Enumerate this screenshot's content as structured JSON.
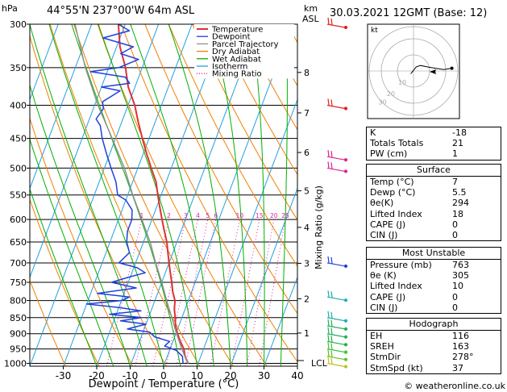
{
  "header": {
    "hpa_label": "hPa",
    "location": "44°55'N  237°00'W  64m  ASL",
    "km_label": "km",
    "asl_label": "ASL",
    "datetime": "30.03.2021  12GMT  (Base: 12)"
  },
  "chart_data": {
    "type": "line",
    "title": "",
    "xlabel": "Dewpoint / Temperature (°C)",
    "ylabel": "Mixing Ratio (g/kg)",
    "x_ticks": [
      -30,
      -20,
      -10,
      0,
      10,
      20,
      30,
      40
    ],
    "pressure_ticks": [
      300,
      350,
      400,
      450,
      500,
      550,
      600,
      650,
      700,
      750,
      800,
      850,
      900,
      950,
      1000
    ],
    "pressure_range": [
      300,
      1010
    ],
    "x_range_at_surface": [
      -40,
      40
    ],
    "skew_deg_per_log_decade": 73,
    "km_ticks": [
      {
        "label": "8",
        "p": 356
      },
      {
        "label": "7",
        "p": 411
      },
      {
        "label": "6",
        "p": 473
      },
      {
        "label": "5",
        "p": 542
      },
      {
        "label": "4",
        "p": 617
      },
      {
        "label": "3",
        "p": 701
      },
      {
        "label": "2",
        "p": 795
      },
      {
        "label": "1",
        "p": 898
      }
    ],
    "lcl": {
      "label": "LCL",
      "p": 990
    },
    "mixing_ratio_labels": [
      "1",
      "2",
      "3",
      "4",
      "5",
      "6",
      "10",
      "15",
      "20",
      "25"
    ],
    "mixing_ratio_values": [
      1,
      2,
      3,
      4,
      5,
      6,
      10,
      15,
      20,
      25
    ],
    "grid": true,
    "legend": {
      "position": "top-right",
      "entries": [
        {
          "name": "Temperature",
          "color": "#e03030"
        },
        {
          "name": "Dewpoint",
          "color": "#2040e0"
        },
        {
          "name": "Parcel Trajectory",
          "color": "#909090"
        },
        {
          "name": "Dry Adiabat",
          "color": "#f08000"
        },
        {
          "name": "Wet Adiabat",
          "color": "#00b000"
        },
        {
          "name": "Isotherm",
          "color": "#20a0e0"
        },
        {
          "name": "Mixing Ratio",
          "color": "#e020a0"
        }
      ]
    },
    "series": [
      {
        "name": "Temperature",
        "color": "#e03030",
        "points": [
          [
            1000,
            7
          ],
          [
            975,
            5.3
          ],
          [
            950,
            4.1
          ],
          [
            925,
            2.2
          ],
          [
            900,
            0.5
          ],
          [
            875,
            -1
          ],
          [
            850,
            -2
          ],
          [
            825,
            -3.2
          ],
          [
            800,
            -4
          ],
          [
            775,
            -5.7
          ],
          [
            750,
            -7
          ],
          [
            725,
            -8.5
          ],
          [
            700,
            -10
          ],
          [
            675,
            -11.5
          ],
          [
            650,
            -13
          ],
          [
            625,
            -15
          ],
          [
            600,
            -17
          ],
          [
            575,
            -19
          ],
          [
            550,
            -21
          ],
          [
            525,
            -23
          ],
          [
            500,
            -26
          ],
          [
            475,
            -29
          ],
          [
            450,
            -32
          ],
          [
            425,
            -35
          ],
          [
            400,
            -38
          ],
          [
            375,
            -42
          ],
          [
            350,
            -45
          ],
          [
            325,
            -49
          ],
          [
            300,
            -52
          ]
        ]
      },
      {
        "name": "Dewpoint",
        "color": "#2040e0",
        "points": [
          [
            1000,
            5.5
          ],
          [
            975,
            4.5
          ],
          [
            955,
            2
          ],
          [
            940,
            -2
          ],
          [
            925,
            -1
          ],
          [
            910,
            -6
          ],
          [
            895,
            -8
          ],
          [
            885,
            -15
          ],
          [
            870,
            -10
          ],
          [
            860,
            -18
          ],
          [
            850,
            -12
          ],
          [
            840,
            -22
          ],
          [
            830,
            -13
          ],
          [
            820,
            -20
          ],
          [
            810,
            -30
          ],
          [
            800,
            -20
          ],
          [
            790,
            -18
          ],
          [
            780,
            -28
          ],
          [
            765,
            -17
          ],
          [
            750,
            -25
          ],
          [
            735,
            -20
          ],
          [
            725,
            -16
          ],
          [
            712,
            -19
          ],
          [
            700,
            -25
          ],
          [
            675,
            -23
          ],
          [
            650,
            -25
          ],
          [
            625,
            -26
          ],
          [
            600,
            -26
          ],
          [
            580,
            -27
          ],
          [
            560,
            -30
          ],
          [
            550,
            -33
          ],
          [
            525,
            -35
          ],
          [
            500,
            -38
          ],
          [
            475,
            -41
          ],
          [
            450,
            -44
          ],
          [
            430,
            -46
          ],
          [
            420,
            -48
          ],
          [
            405,
            -47
          ],
          [
            395,
            -48
          ],
          [
            380,
            -44
          ],
          [
            375,
            -50
          ],
          [
            370,
            -42
          ],
          [
            362,
            -44
          ],
          [
            355,
            -55
          ],
          [
            350,
            -47
          ],
          [
            340,
            -42
          ],
          [
            333,
            -48
          ],
          [
            325,
            -45
          ],
          [
            315,
            -55
          ],
          [
            307,
            -48
          ],
          [
            300,
            -52
          ]
        ]
      },
      {
        "name": "Parcel Trajectory",
        "color": "#909090",
        "points": [
          [
            1000,
            7
          ],
          [
            990,
            6.2
          ],
          [
            950,
            3.5
          ],
          [
            900,
            0.2
          ],
          [
            850,
            -3
          ],
          [
            800,
            -6.5
          ],
          [
            750,
            -10
          ],
          [
            700,
            -14
          ],
          [
            650,
            -18
          ],
          [
            600,
            -23
          ],
          [
            550,
            -28.5
          ],
          [
            500,
            -34
          ],
          [
            450,
            -41
          ],
          [
            400,
            -49
          ],
          [
            350,
            -57
          ],
          [
            300,
            -65
          ]
        ]
      }
    ]
  },
  "hodograph": {
    "label": "kt",
    "ring_labels": [
      "10",
      "20",
      "30"
    ],
    "trace_uv_kt": [
      [
        -2,
        -2
      ],
      [
        2,
        3
      ],
      [
        5,
        4
      ],
      [
        10,
        3
      ],
      [
        16,
        2
      ],
      [
        22,
        1
      ],
      [
        28,
        2
      ]
    ]
  },
  "wind_barbs": {
    "color_map_note": "",
    "levels": [
      {
        "p": 300,
        "color": "#e02020"
      },
      {
        "p": 400,
        "color": "#e02020"
      },
      {
        "p": 480,
        "color": "#e0208a"
      },
      {
        "p": 500,
        "color": "#e0208a"
      },
      {
        "p": 700,
        "color": "#2040e0"
      },
      {
        "p": 790,
        "color": "#20b0b0"
      },
      {
        "p": 850,
        "color": "#20b0b0"
      },
      {
        "p": 875,
        "color": "#20b060"
      },
      {
        "p": 900,
        "color": "#20b060"
      },
      {
        "p": 925,
        "color": "#20b040"
      },
      {
        "p": 950,
        "color": "#40c040"
      },
      {
        "p": 975,
        "color": "#60c020"
      },
      {
        "p": 1000,
        "color": "#c0c020"
      }
    ]
  },
  "indices": {
    "basic": [
      {
        "label": "K",
        "value": "-18"
      },
      {
        "label": "Totals Totals",
        "value": "21"
      },
      {
        "label": "PW (cm)",
        "value": "1"
      }
    ],
    "surface": {
      "title": "Surface",
      "rows": [
        {
          "label": "Temp (°C)",
          "value": "7"
        },
        {
          "label": "Dewp (°C)",
          "value": "5.5"
        },
        {
          "label": "θe(K)",
          "value": "294"
        },
        {
          "label": "Lifted Index",
          "value": "18"
        },
        {
          "label": "CAPE (J)",
          "value": "0"
        },
        {
          "label": "CIN (J)",
          "value": "0"
        }
      ]
    },
    "most_unstable": {
      "title": "Most Unstable",
      "rows": [
        {
          "label": "Pressure (mb)",
          "value": "763"
        },
        {
          "label": "θe (K)",
          "value": "305"
        },
        {
          "label": "Lifted Index",
          "value": "10"
        },
        {
          "label": "CAPE (J)",
          "value": "0"
        },
        {
          "label": "CIN (J)",
          "value": "0"
        }
      ]
    },
    "hodograph": {
      "title": "Hodograph",
      "rows": [
        {
          "label": "EH",
          "value": "116"
        },
        {
          "label": "SREH",
          "value": "163"
        },
        {
          "label": "StmDir",
          "value": "278°"
        },
        {
          "label": "StmSpd (kt)",
          "value": "37"
        }
      ]
    }
  },
  "footer": {
    "copyright": "© weatheronline.co.uk"
  }
}
